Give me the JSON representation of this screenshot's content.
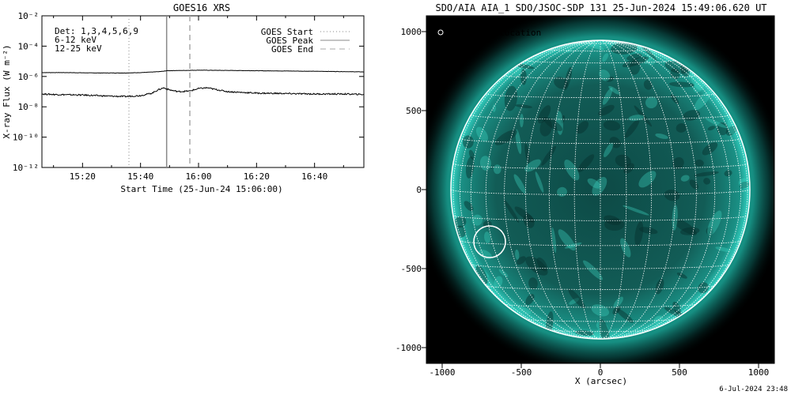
{
  "chart_data": [
    {
      "type": "line",
      "title": "GOES16 XRS",
      "xlabel": "Start Time (25-Jun-24 15:06:00)",
      "ylabel": "X-ray Flux (W m⁻²)",
      "x_range": [
        "15:06",
        "16:57"
      ],
      "ylim": [
        1e-12,
        0.01
      ],
      "y_scale": "log",
      "x_ticks": [
        "15:20",
        "15:40",
        "16:00",
        "16:20",
        "16:40"
      ],
      "y_ticks": [
        "10⁻²",
        "10⁻⁴",
        "10⁻⁶",
        "10⁻⁸",
        "10⁻¹⁰",
        "10⁻¹²"
      ],
      "detectors_text": "Det: 1,3,4,5,6,9",
      "series": [
        {
          "name": "6-12 keV",
          "color": "#000000",
          "x": [
            "15:06",
            "15:15",
            "15:25",
            "15:30",
            "15:35",
            "15:40",
            "15:45",
            "15:48",
            "15:49",
            "15:55",
            "16:00",
            "16:10",
            "16:20",
            "16:30",
            "16:40",
            "16:50",
            "16:57"
          ],
          "y": [
            1.8e-06,
            1.8e-06,
            1.7e-06,
            1.7e-06,
            1.7e-06,
            1.8e-06,
            2e-06,
            2.2e-06,
            2.4e-06,
            2.5e-06,
            2.6e-06,
            2.5e-06,
            2.4e-06,
            2.3e-06,
            2.2e-06,
            2.1e-06,
            2e-06
          ]
        },
        {
          "name": "12-25 keV",
          "color": "#000000",
          "x": [
            "15:06",
            "15:10",
            "15:20",
            "15:30",
            "15:35",
            "15:40",
            "15:44",
            "15:46",
            "15:48",
            "15:50",
            "15:53",
            "15:57",
            "16:00",
            "16:03",
            "16:05",
            "16:10",
            "16:20",
            "16:30",
            "16:40",
            "16:50",
            "16:57"
          ],
          "y": [
            7e-08,
            6.5e-08,
            6e-08,
            5e-08,
            4.8e-08,
            5.5e-08,
            8e-08,
            1.3e-07,
            1.8e-07,
            1.3e-07,
            1e-07,
            1.1e-07,
            1.6e-07,
            1.8e-07,
            1.5e-07,
            1e-07,
            8e-08,
            7.5e-08,
            7e-08,
            7e-08,
            6.5e-08
          ]
        }
      ],
      "legend": [
        {
          "label": "GOES Start",
          "style": "dotted",
          "time": "15:36"
        },
        {
          "label": "GOES Peak",
          "style": "solid",
          "time": "15:49"
        },
        {
          "label": "GOES End",
          "style": "dashed",
          "time": "15:57"
        }
      ],
      "channel_labels": [
        {
          "text": "6-12 keV",
          "color": "#ff00ff"
        },
        {
          "text": "12-25 keV",
          "color": "#00cc00"
        }
      ]
    },
    {
      "type": "image",
      "title": "SDO/AIA AIA_1 SDO/JSOC-SDP 131 25-Jun-2024 15:49:06.620 UT",
      "xlabel": "X (arcsec)",
      "xlim": [
        -1100,
        1100
      ],
      "ylim": [
        -1100,
        1100
      ],
      "x_ticks": [
        -1000,
        -500,
        0,
        500,
        1000
      ],
      "y_ticks": [
        1000,
        500,
        0,
        -500,
        -1000
      ],
      "legend_text": "AIA flare location",
      "flare_location": [
        -700,
        -330
      ],
      "solar_radius_arcsec": 945,
      "disk_color": "#1ec4b4"
    }
  ],
  "footer_timestamp": "6-Jul-2024 23:48"
}
